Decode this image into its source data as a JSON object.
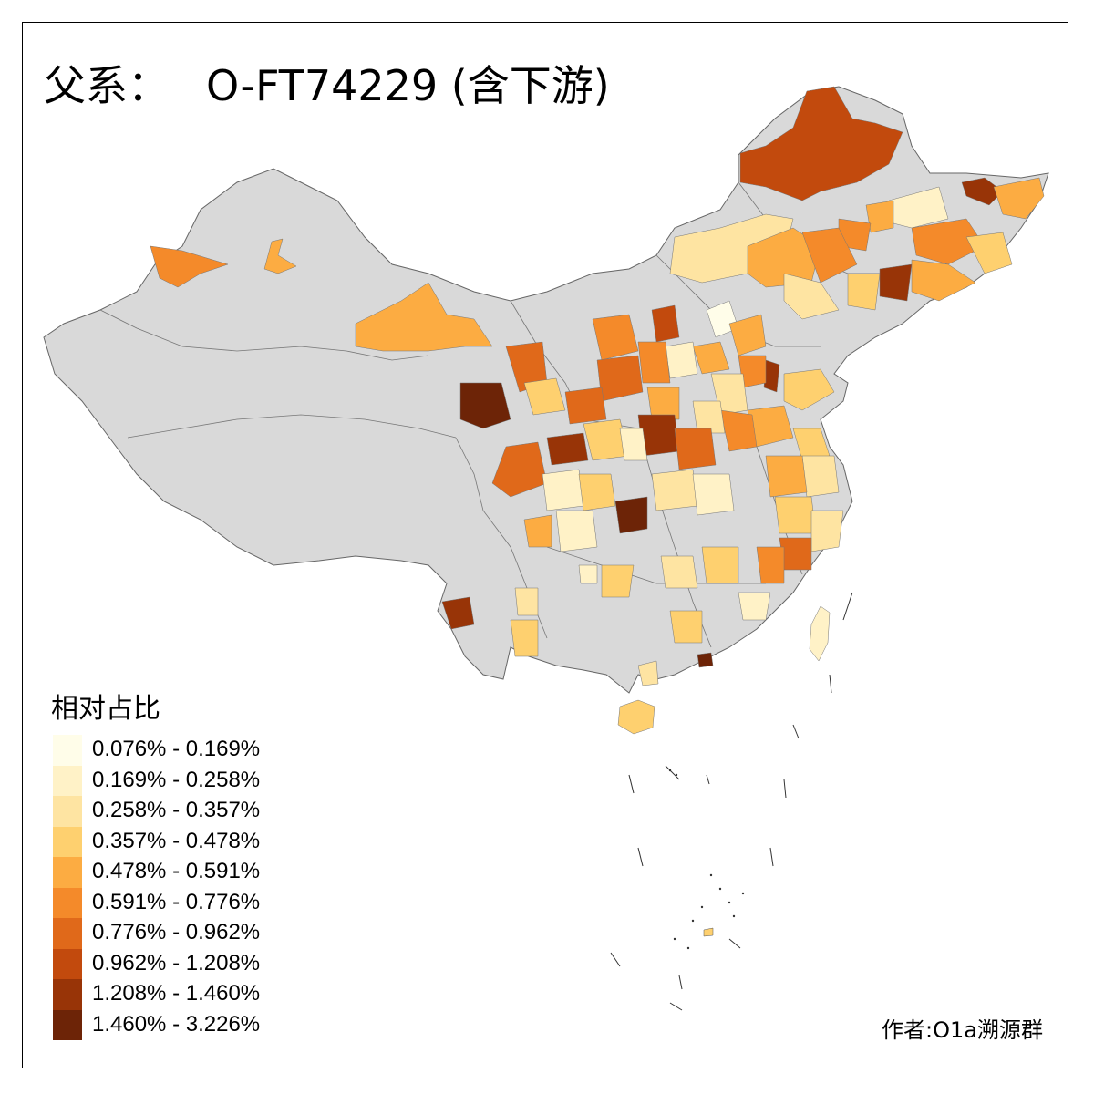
{
  "title": {
    "prefix": "父系：",
    "main": "O-FT74229 (含下游)"
  },
  "legend": {
    "title": "相对占比",
    "classes": [
      {
        "label": "0.076% - 0.169%",
        "color": "#fffde9"
      },
      {
        "label": "0.169% - 0.258%",
        "color": "#fff2c7"
      },
      {
        "label": "0.258% - 0.357%",
        "color": "#fee4a2"
      },
      {
        "label": "0.357% - 0.478%",
        "color": "#fed06f"
      },
      {
        "label": "0.478% - 0.591%",
        "color": "#fcac42"
      },
      {
        "label": "0.591% - 0.776%",
        "color": "#f48a2a"
      },
      {
        "label": "0.776% - 0.962%",
        "color": "#e0691a"
      },
      {
        "label": "0.962% - 1.208%",
        "color": "#c24a0d"
      },
      {
        "label": "1.208% - 1.460%",
        "color": "#983407"
      },
      {
        "label": "1.460% - 3.226%",
        "color": "#6d2407"
      }
    ]
  },
  "author": "作者:O1a溯源群",
  "colors": {
    "no_data": "#d9d9d9",
    "border": "#666666"
  }
}
